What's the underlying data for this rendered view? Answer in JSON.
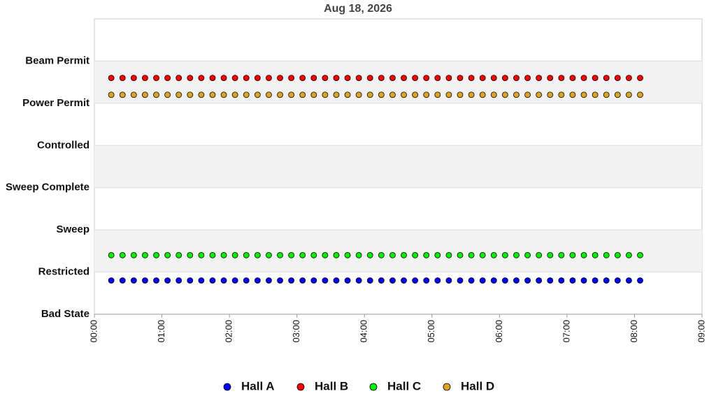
{
  "chart_data": {
    "type": "scatter",
    "title": "Aug 18, 2026",
    "x": [
      "00:15",
      "00:25",
      "00:35",
      "00:45",
      "00:55",
      "01:05",
      "01:15",
      "01:25",
      "01:35",
      "01:45",
      "01:55",
      "02:05",
      "02:15",
      "02:25",
      "02:35",
      "02:45",
      "02:55",
      "03:05",
      "03:15",
      "03:25",
      "03:35",
      "03:45",
      "03:55",
      "04:05",
      "04:15",
      "04:25",
      "04:35",
      "04:45",
      "04:55",
      "05:05",
      "05:15",
      "05:25",
      "05:35",
      "05:45",
      "05:55",
      "06:05",
      "06:15",
      "06:25",
      "06:35",
      "06:45",
      "06:55",
      "07:05",
      "07:15",
      "07:25",
      "07:35",
      "07:45",
      "07:55",
      "08:05"
    ],
    "series": [
      {
        "name": "Hall A",
        "color": "#0000ff",
        "values": [
          0.8,
          0.8,
          0.8,
          0.8,
          0.8,
          0.8,
          0.8,
          0.8,
          0.8,
          0.8,
          0.8,
          0.8,
          0.8,
          0.8,
          0.8,
          0.8,
          0.8,
          0.8,
          0.8,
          0.8,
          0.8,
          0.8,
          0.8,
          0.8,
          0.8,
          0.8,
          0.8,
          0.8,
          0.8,
          0.8,
          0.8,
          0.8,
          0.8,
          0.8,
          0.8,
          0.8,
          0.8,
          0.8,
          0.8,
          0.8,
          0.8,
          0.8,
          0.8,
          0.8,
          0.8,
          0.8,
          0.8,
          0.8
        ]
      },
      {
        "name": "Hall B",
        "color": "#ff0000",
        "values": [
          5.6,
          5.6,
          5.6,
          5.6,
          5.6,
          5.6,
          5.6,
          5.6,
          5.6,
          5.6,
          5.6,
          5.6,
          5.6,
          5.6,
          5.6,
          5.6,
          5.6,
          5.6,
          5.6,
          5.6,
          5.6,
          5.6,
          5.6,
          5.6,
          5.6,
          5.6,
          5.6,
          5.6,
          5.6,
          5.6,
          5.6,
          5.6,
          5.6,
          5.6,
          5.6,
          5.6,
          5.6,
          5.6,
          5.6,
          5.6,
          5.6,
          5.6,
          5.6,
          5.6,
          5.6,
          5.6,
          5.6,
          5.6
        ]
      },
      {
        "name": "Hall C",
        "color": "#00ee00",
        "values": [
          1.4,
          1.4,
          1.4,
          1.4,
          1.4,
          1.4,
          1.4,
          1.4,
          1.4,
          1.4,
          1.4,
          1.4,
          1.4,
          1.4,
          1.4,
          1.4,
          1.4,
          1.4,
          1.4,
          1.4,
          1.4,
          1.4,
          1.4,
          1.4,
          1.4,
          1.4,
          1.4,
          1.4,
          1.4,
          1.4,
          1.4,
          1.4,
          1.4,
          1.4,
          1.4,
          1.4,
          1.4,
          1.4,
          1.4,
          1.4,
          1.4,
          1.4,
          1.4,
          1.4,
          1.4,
          1.4,
          1.4,
          1.4
        ]
      },
      {
        "name": "Hall D",
        "color": "#daa520",
        "values": [
          5.2,
          5.2,
          5.2,
          5.2,
          5.2,
          5.2,
          5.2,
          5.2,
          5.2,
          5.2,
          5.2,
          5.2,
          5.2,
          5.2,
          5.2,
          5.2,
          5.2,
          5.2,
          5.2,
          5.2,
          5.2,
          5.2,
          5.2,
          5.2,
          5.2,
          5.2,
          5.2,
          5.2,
          5.2,
          5.2,
          5.2,
          5.2,
          5.2,
          5.2,
          5.2,
          5.2,
          5.2,
          5.2,
          5.2,
          5.2,
          5.2,
          5.2,
          5.2,
          5.2,
          5.2,
          5.2,
          5.2,
          5.2
        ]
      }
    ],
    "xlim": [
      "00:00",
      "09:00"
    ],
    "xticks": [
      "00:00",
      "01:00",
      "02:00",
      "03:00",
      "04:00",
      "05:00",
      "06:00",
      "07:00",
      "08:00",
      "09:00"
    ],
    "ylim": [
      0,
      7
    ],
    "yticks": [
      {
        "value": 0,
        "label": "Bad State"
      },
      {
        "value": 1,
        "label": "Restricted"
      },
      {
        "value": 2,
        "label": "Sweep"
      },
      {
        "value": 3,
        "label": "Sweep Complete"
      },
      {
        "value": 4,
        "label": "Controlled"
      },
      {
        "value": 5,
        "label": "Power Permit"
      },
      {
        "value": 6,
        "label": "Beam Permit"
      }
    ],
    "grid": true,
    "legend": "bottom"
  }
}
